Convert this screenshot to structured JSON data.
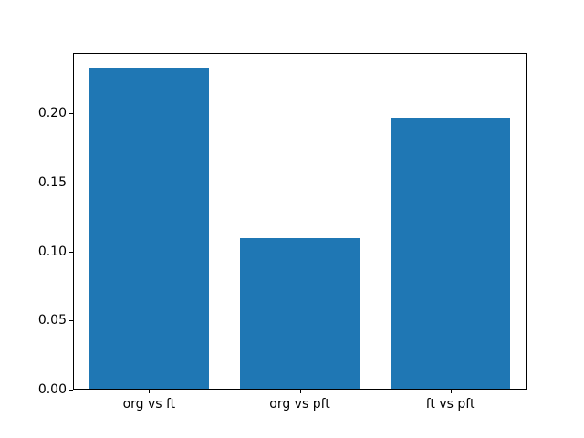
{
  "chart_data": {
    "type": "bar",
    "categories": [
      "org vs ft",
      "org vs pft",
      "ft vs pft"
    ],
    "values": [
      0.232,
      0.109,
      0.196
    ],
    "title": "",
    "xlabel": "",
    "ylabel": "",
    "ylim": [
      0,
      0.2436
    ],
    "xlim": [
      -0.505,
      2.505
    ],
    "bar_width": 0.79,
    "yticks": [
      0.0,
      0.05,
      0.1,
      0.15,
      0.2
    ],
    "ytick_labels": [
      "0.00",
      "0.05",
      "0.10",
      "0.15",
      "0.20"
    ],
    "bar_color": "#1f77b4",
    "grid": false,
    "legend": null
  }
}
